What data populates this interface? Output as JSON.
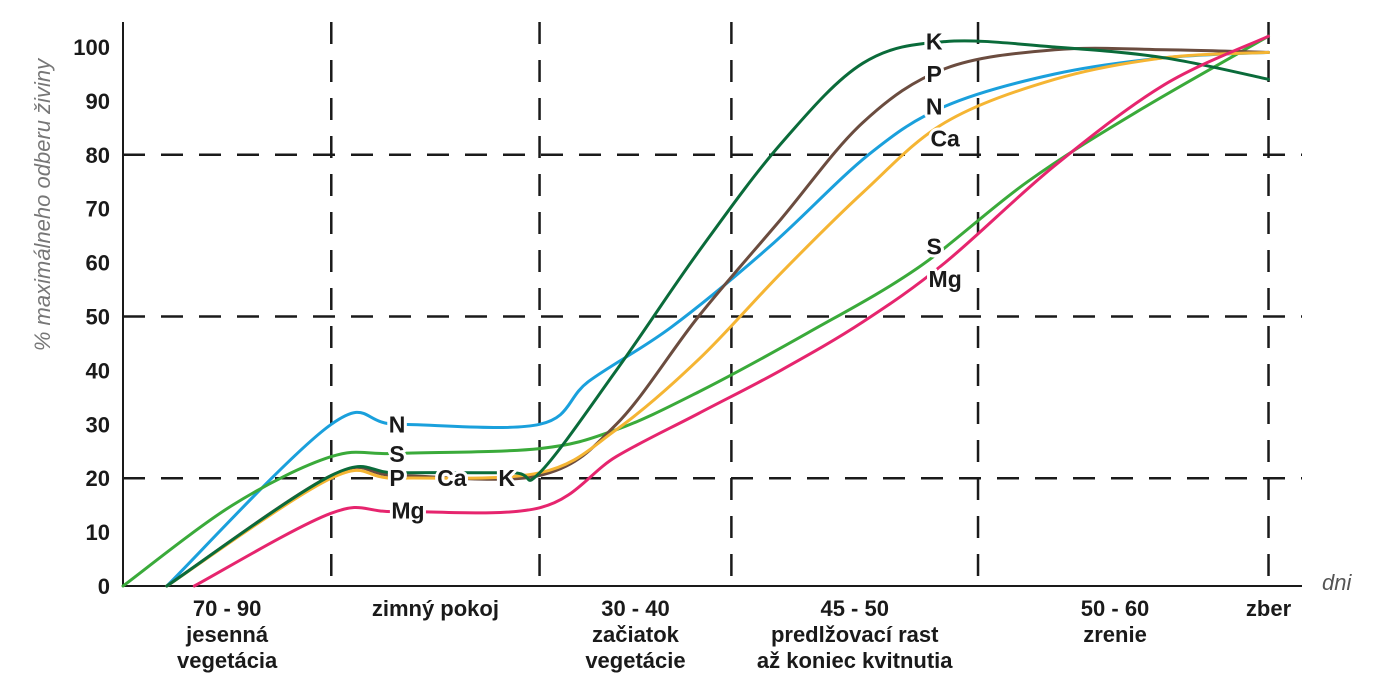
{
  "chart_data": {
    "type": "line",
    "ylabel": "% maximálneho odberu živiny",
    "xlabel": "dni",
    "ylim": [
      0,
      100
    ],
    "yticks": [
      0,
      10,
      20,
      30,
      40,
      50,
      60,
      70,
      80,
      90,
      100
    ],
    "h_dashed_at": [
      20,
      50,
      80
    ],
    "x_range": [
      0,
      21
    ],
    "v_dashed_at": [
      3.8,
      7.6,
      11.1,
      15.6,
      20.9
    ],
    "categories": [
      {
        "lines": [
          "70 - 90",
          "jesenná",
          "vegetácia"
        ],
        "x": 1.9
      },
      {
        "lines": [
          "zimný pokoj"
        ],
        "x": 5.7
      },
      {
        "lines": [
          "30 - 40",
          "začiatok",
          "vegetácie"
        ],
        "x": 9.35
      },
      {
        "lines": [
          "45 - 50",
          "predlžovací rast",
          "až koniec kvitnutia"
        ],
        "x": 13.35
      },
      {
        "lines": [
          "50 - 60",
          "zrenie"
        ],
        "x": 18.1
      },
      {
        "lines": [
          "zber"
        ],
        "x": 20.9
      }
    ],
    "series": [
      {
        "name": "N",
        "color": "#1aa0dc",
        "points": [
          [
            0.8,
            0
          ],
          [
            3.8,
            30
          ],
          [
            5.0,
            30
          ],
          [
            7.6,
            30
          ],
          [
            8.5,
            38
          ],
          [
            10.0,
            48
          ],
          [
            11.8,
            63
          ],
          [
            13.6,
            80
          ],
          [
            15.0,
            89
          ],
          [
            17.0,
            95
          ],
          [
            19.0,
            98
          ],
          [
            20.9,
            99
          ]
        ]
      },
      {
        "name": "S",
        "color": "#3aaa3a",
        "points": [
          [
            0,
            0
          ],
          [
            2.0,
            15
          ],
          [
            3.8,
            24
          ],
          [
            5.0,
            24.6
          ],
          [
            7.6,
            25.5
          ],
          [
            9.0,
            29
          ],
          [
            10.5,
            36
          ],
          [
            12.5,
            47
          ],
          [
            14.5,
            59
          ],
          [
            16.5,
            75
          ],
          [
            18.5,
            88
          ],
          [
            20.9,
            102
          ]
        ]
      },
      {
        "name": "P",
        "color": "#6b4c3f",
        "points": [
          [
            0.8,
            0
          ],
          [
            3.8,
            20.5
          ],
          [
            5.0,
            20.5
          ],
          [
            7.6,
            20.5
          ],
          [
            9.0,
            30
          ],
          [
            10.5,
            50
          ],
          [
            12.0,
            68
          ],
          [
            13.5,
            86
          ],
          [
            15.0,
            96
          ],
          [
            17.0,
            99.5
          ],
          [
            19.0,
            99.5
          ],
          [
            20.9,
            99
          ]
        ]
      },
      {
        "name": "Ca",
        "color": "#f5b533",
        "points": [
          [
            0.8,
            0
          ],
          [
            3.8,
            20
          ],
          [
            5.0,
            20
          ],
          [
            7.6,
            21
          ],
          [
            9.0,
            29
          ],
          [
            10.5,
            42
          ],
          [
            12.0,
            58
          ],
          [
            13.5,
            73
          ],
          [
            15.0,
            86
          ],
          [
            17.0,
            94
          ],
          [
            19.0,
            98
          ],
          [
            20.9,
            99
          ]
        ]
      },
      {
        "name": "K",
        "color": "#0a6b3a",
        "points": [
          [
            0.8,
            0
          ],
          [
            3.8,
            20.5
          ],
          [
            5.0,
            21
          ],
          [
            7.1,
            21
          ],
          [
            7.6,
            21
          ],
          [
            9.0,
            40
          ],
          [
            10.5,
            62
          ],
          [
            12.0,
            82
          ],
          [
            13.5,
            97
          ],
          [
            15.0,
            101
          ],
          [
            17.0,
            100
          ],
          [
            19.0,
            98
          ],
          [
            20.9,
            94
          ]
        ]
      },
      {
        "name": "Mg",
        "color": "#e6256e",
        "points": [
          [
            1.3,
            0
          ],
          [
            3.8,
            13.5
          ],
          [
            5.0,
            13.8
          ],
          [
            7.6,
            14.5
          ],
          [
            9.0,
            24
          ],
          [
            10.5,
            32
          ],
          [
            12.0,
            40
          ],
          [
            13.5,
            49
          ],
          [
            15.0,
            60
          ],
          [
            17.0,
            78
          ],
          [
            19.0,
            93
          ],
          [
            20.9,
            102
          ]
        ]
      }
    ],
    "labels": [
      {
        "text": "N",
        "x": 5.0,
        "y": 30
      },
      {
        "text": "S",
        "x": 5.0,
        "y": 24.5
      },
      {
        "text": "P",
        "x": 5.0,
        "y": 20
      },
      {
        "text": "Ca",
        "x": 6.0,
        "y": 20
      },
      {
        "text": "K",
        "x": 7.0,
        "y": 20
      },
      {
        "text": "Mg",
        "x": 5.2,
        "y": 14
      },
      {
        "text": "K",
        "x": 14.8,
        "y": 101
      },
      {
        "text": "P",
        "x": 14.8,
        "y": 95
      },
      {
        "text": "N",
        "x": 14.8,
        "y": 89
      },
      {
        "text": "Ca",
        "x": 15.0,
        "y": 83
      },
      {
        "text": "S",
        "x": 14.8,
        "y": 63
      },
      {
        "text": "Mg",
        "x": 15.0,
        "y": 57
      }
    ]
  }
}
